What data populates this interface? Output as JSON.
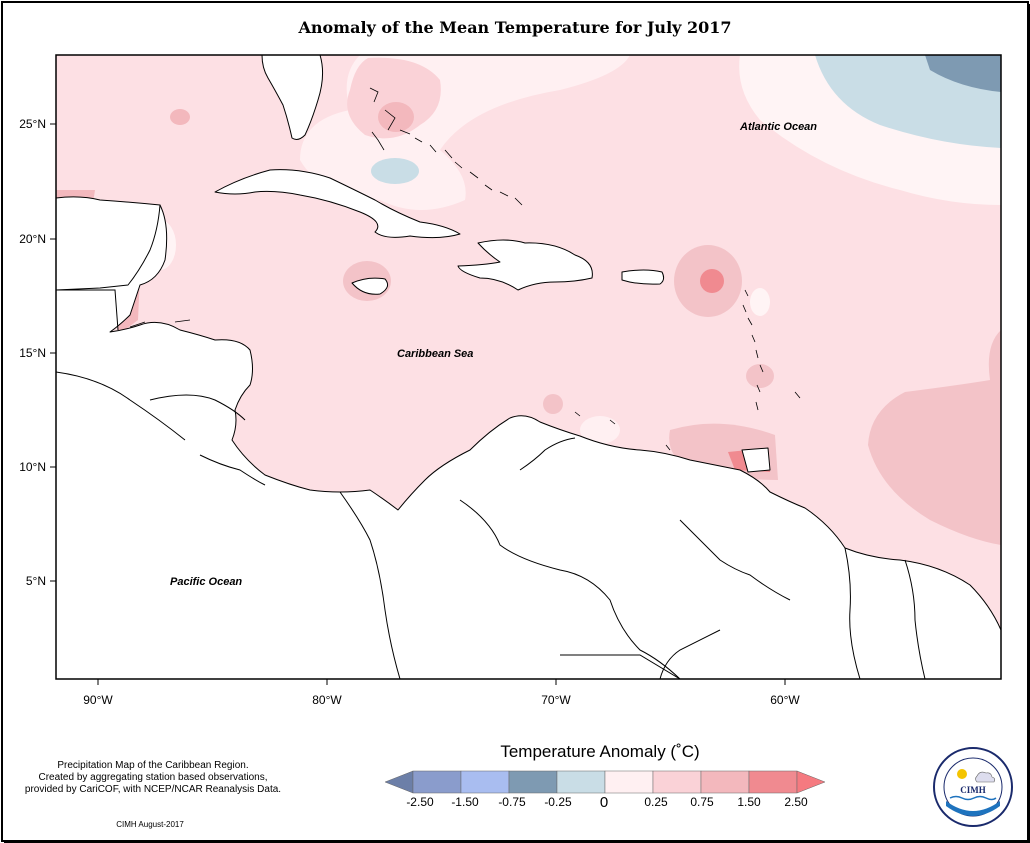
{
  "title": "Anomaly of the Mean Temperature for July 2017",
  "axes": {
    "lat_labels": [
      "25°N",
      "20°N",
      "15°N",
      "10°N",
      "5°N"
    ],
    "lon_labels": [
      "90°W",
      "80°W",
      "70°W",
      "60°W"
    ]
  },
  "map_labels": {
    "atlantic": "Atlantic Ocean",
    "caribbean": "Caribbean Sea",
    "pacific": "Pacific Ocean"
  },
  "legend": {
    "title": "Temperature Anomaly (˚C)",
    "ticks": [
      "-2.50",
      "-1.50",
      "-0.75",
      "-0.25",
      "0",
      "0.25",
      "0.75",
      "1.50",
      "2.50"
    ],
    "colors": [
      "#6c7fa8",
      "#8ea2c8",
      "#b3c4e8",
      "#7e9ab2",
      "#c9dde6",
      "#fde9ec",
      "#fad2d7",
      "#f3b8bd",
      "#f08a90",
      "#f57a80"
    ]
  },
  "note": {
    "line1": "Precipitation Map of the Caribbean Region.",
    "line2": "Created by aggregating station based observations,",
    "line3": "provided by CariCOF, with NCEP/NCAR Reanalysis Data."
  },
  "credit": "CIMH August-2017",
  "logo": {
    "ring_text": "Caribbean Institute for Meteorology and Hydrology",
    "abbr": "CIMH"
  }
}
